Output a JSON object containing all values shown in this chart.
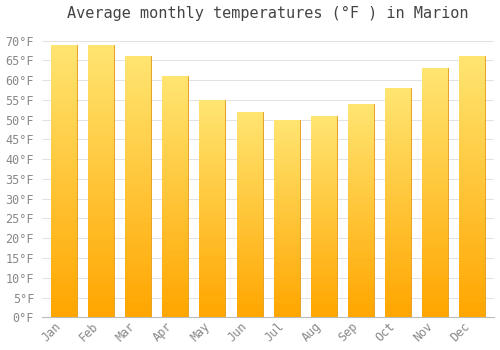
{
  "title": "Average monthly temperatures (°F ) in Marion",
  "months": [
    "Jan",
    "Feb",
    "Mar",
    "Apr",
    "May",
    "Jun",
    "Jul",
    "Aug",
    "Sep",
    "Oct",
    "Nov",
    "Dec"
  ],
  "values": [
    69,
    69,
    66,
    61,
    55,
    52,
    50,
    51,
    54,
    58,
    63,
    66
  ],
  "bar_color_bottom": "#FFA500",
  "bar_color_top": "#FFD070",
  "bar_edge_color": "#E09000",
  "background_color": "#FFFFFF",
  "grid_color": "#DDDDDD",
  "ylim": [
    0,
    73
  ],
  "yticks": [
    0,
    5,
    10,
    15,
    20,
    25,
    30,
    35,
    40,
    45,
    50,
    55,
    60,
    65,
    70
  ],
  "title_fontsize": 11,
  "tick_fontsize": 8.5,
  "tick_font_color": "#888888",
  "title_font_color": "#444444",
  "bar_width": 0.7
}
